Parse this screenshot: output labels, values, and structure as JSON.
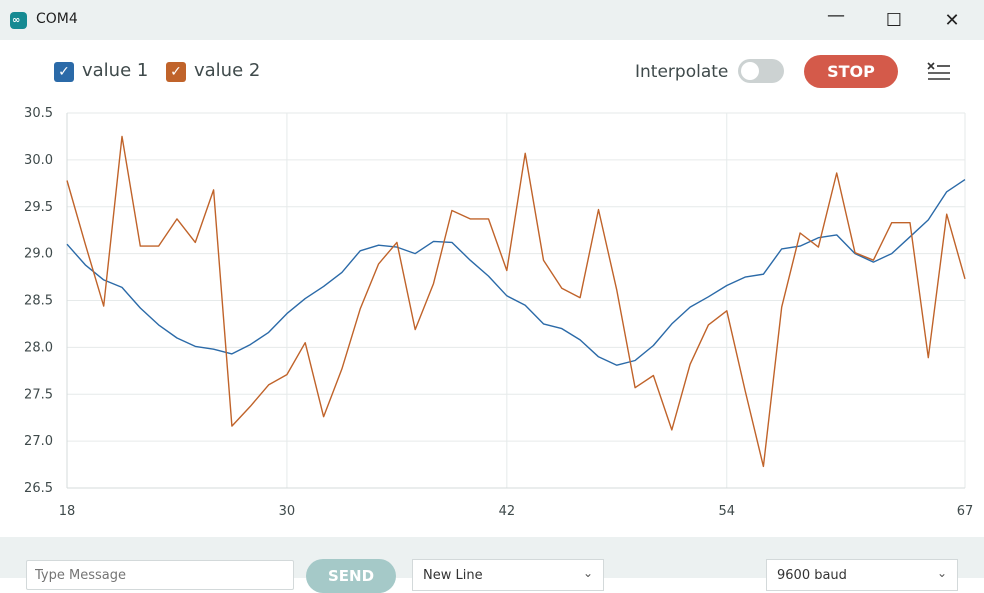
{
  "window": {
    "title": "COM4",
    "app_icon_glyph": "∞",
    "controls": {
      "minimize": "—",
      "maximize": "☐",
      "close": "✕"
    }
  },
  "toolbar": {
    "legend": [
      {
        "label": "value 1",
        "color": "#2b6aa8",
        "checked": true
      },
      {
        "label": "value 2",
        "color": "#c0632a",
        "checked": true
      }
    ],
    "interpolate_label": "Interpolate",
    "interpolate_on": false,
    "stop_label": "STOP",
    "clear_icon": "clear-list-icon"
  },
  "chart_data": {
    "type": "line",
    "xlim": [
      18,
      67
    ],
    "ylim": [
      26.5,
      30.5
    ],
    "x_ticks": [
      18,
      30,
      42,
      54,
      67
    ],
    "y_ticks": [
      26.5,
      27.0,
      27.5,
      28.0,
      28.5,
      29.0,
      29.5,
      30.0,
      30.5
    ],
    "grid": true,
    "series": [
      {
        "name": "value 1",
        "color": "#2b6aa8",
        "x": [
          18,
          19,
          20,
          21,
          22,
          23,
          24,
          25,
          26,
          27,
          28,
          29,
          30,
          31,
          32,
          33,
          34,
          35,
          36,
          37,
          38,
          39,
          40,
          41,
          42,
          43,
          44,
          45,
          46,
          47,
          48,
          49,
          50,
          51,
          52,
          53,
          54,
          55,
          56,
          57,
          58,
          59,
          60,
          61,
          62,
          63,
          64,
          65,
          66,
          67
        ],
        "values": [
          29.1,
          28.88,
          28.72,
          28.64,
          28.42,
          28.24,
          28.1,
          28.01,
          27.98,
          27.93,
          28.03,
          28.16,
          28.36,
          28.52,
          28.65,
          28.8,
          29.03,
          29.09,
          29.07,
          29.0,
          29.13,
          29.12,
          28.93,
          28.76,
          28.55,
          28.45,
          28.25,
          28.2,
          28.08,
          27.9,
          27.81,
          27.86,
          28.02,
          28.25,
          28.43,
          28.54,
          28.66,
          28.75,
          28.78,
          29.05,
          29.08,
          29.17,
          29.2,
          29.0,
          28.91,
          29.0,
          29.18,
          29.36,
          29.66,
          29.79
        ]
      },
      {
        "name": "value 2",
        "color": "#c0632a",
        "x": [
          18,
          19,
          20,
          21,
          22,
          23,
          24,
          25,
          26,
          27,
          28,
          29,
          30,
          31,
          32,
          33,
          34,
          35,
          36,
          37,
          38,
          39,
          40,
          41,
          42,
          43,
          44,
          45,
          46,
          47,
          48,
          49,
          50,
          51,
          52,
          53,
          54,
          55,
          56,
          57,
          58,
          59,
          60,
          61,
          62,
          63,
          64,
          65,
          66,
          67
        ],
        "values": [
          29.78,
          29.1,
          28.44,
          30.25,
          29.08,
          29.08,
          29.37,
          29.12,
          29.68,
          27.16,
          27.37,
          27.6,
          27.71,
          28.05,
          27.26,
          27.77,
          28.41,
          28.89,
          29.12,
          28.19,
          28.68,
          29.46,
          29.37,
          29.37,
          28.82,
          30.07,
          28.93,
          28.63,
          28.53,
          29.47,
          28.61,
          27.57,
          27.7,
          27.12,
          27.82,
          28.24,
          28.39,
          27.54,
          26.73,
          28.43,
          29.22,
          29.07,
          29.86,
          29.01,
          28.93,
          29.33,
          29.33,
          27.89,
          29.42,
          28.73
        ]
      }
    ]
  },
  "footer": {
    "message_placeholder": "Type Message",
    "send_label": "SEND",
    "line_ending": "New Line",
    "baud_rate": "9600 baud"
  }
}
